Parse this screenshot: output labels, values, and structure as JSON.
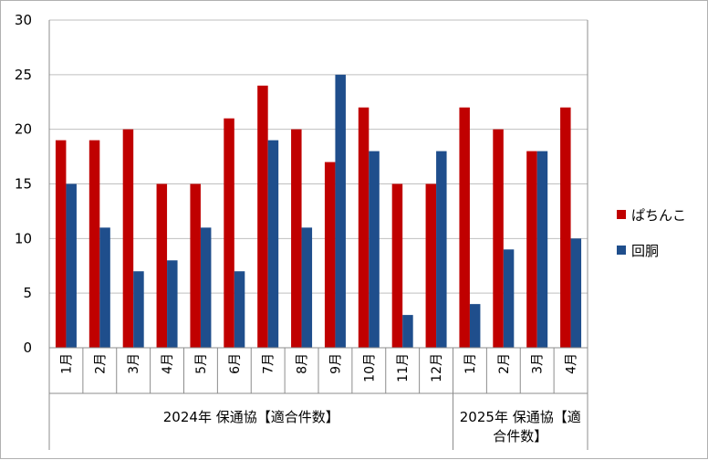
{
  "chart_data": {
    "type": "bar",
    "title": "",
    "ylim": [
      0,
      30
    ],
    "yticks": [
      0,
      5,
      10,
      15,
      20,
      25,
      30
    ],
    "grid": true,
    "legend_position": "right",
    "categories": [
      "1月",
      "2月",
      "3月",
      "4月",
      "5月",
      "6月",
      "7月",
      "8月",
      "9月",
      "10月",
      "11月",
      "12月",
      "1月",
      "2月",
      "3月",
      "4月"
    ],
    "groups": [
      {
        "label": "2024年 保通協【適合件数】",
        "count": 12
      },
      {
        "label_lines": [
          "2025年 保通協【適",
          "合件数】"
        ],
        "count": 4
      }
    ],
    "series": [
      {
        "name": "ぱちんこ",
        "color": "#c00000",
        "values": [
          19,
          19,
          20,
          15,
          15,
          21,
          24,
          20,
          17,
          22,
          15,
          15,
          22,
          20,
          18,
          22
        ]
      },
      {
        "name": "回胴",
        "color": "#1f4e8c",
        "values": [
          15,
          11,
          7,
          8,
          11,
          7,
          19,
          11,
          25,
          18,
          3,
          18,
          4,
          9,
          18,
          10
        ]
      }
    ]
  }
}
